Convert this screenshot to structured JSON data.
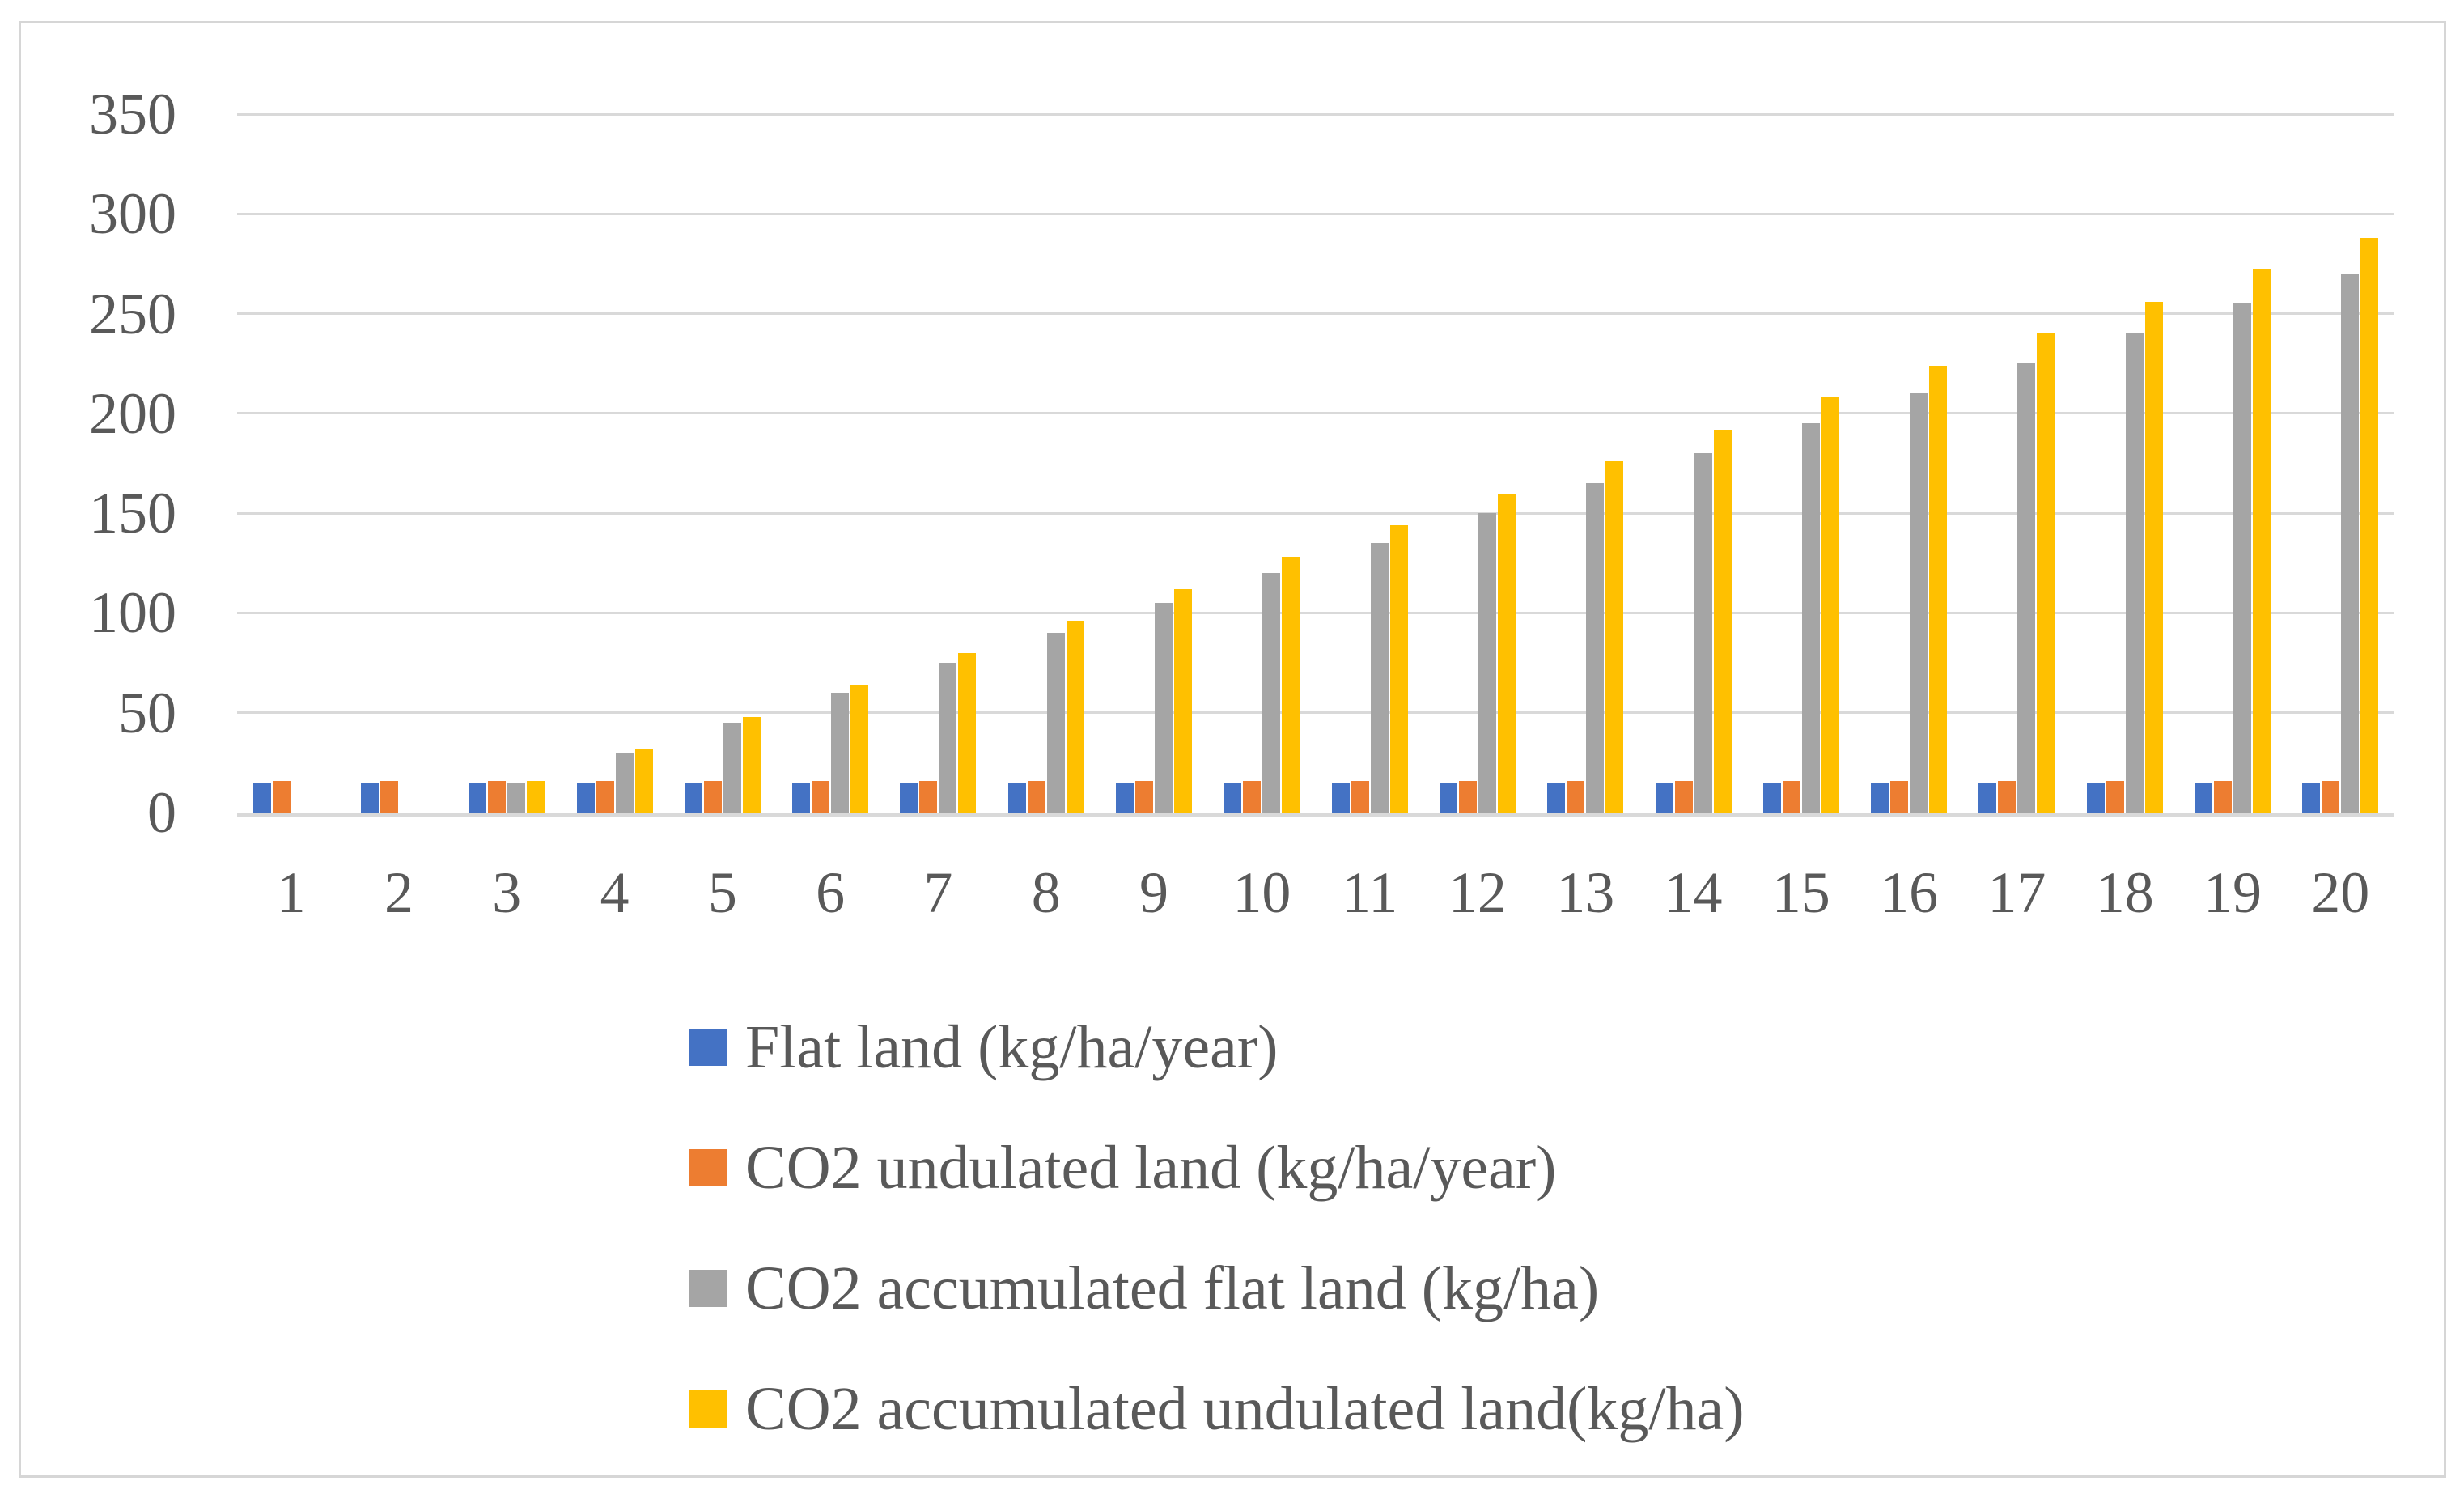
{
  "figure": {
    "background": "#FFFFFF",
    "border_color": "#D6D6D6",
    "gridline_color": "#D9D9D9",
    "axis_line_color": "#D9D9D9",
    "text_color": "#595959"
  },
  "chart_data": {
    "type": "bar",
    "title": "",
    "xlabel": "",
    "ylabel": "",
    "categories": [
      "1",
      "2",
      "3",
      "4",
      "5",
      "6",
      "7",
      "8",
      "9",
      "10",
      "11",
      "12",
      "13",
      "14",
      "15",
      "16",
      "17",
      "18",
      "19",
      "20"
    ],
    "ylim": [
      0,
      350
    ],
    "yticks": [
      0,
      50,
      100,
      150,
      200,
      250,
      300,
      350
    ],
    "grid": true,
    "legend_position": "bottom-left, stacked vertically",
    "series": [
      {
        "name": "Flat land (kg/ha/year)",
        "color": "#4472C4",
        "values": [
          15,
          15,
          15,
          15,
          15,
          15,
          15,
          15,
          15,
          15,
          15,
          15,
          15,
          15,
          15,
          15,
          15,
          15,
          15,
          15
        ]
      },
      {
        "name": "CO2 undulated land (kg/ha/year)",
        "color": "#ED7D31",
        "values": [
          16,
          16,
          16,
          16,
          16,
          16,
          16,
          16,
          16,
          16,
          16,
          16,
          16,
          16,
          16,
          16,
          16,
          16,
          16,
          16
        ]
      },
      {
        "name": "CO2 accumulated flat land (kg/ha)",
        "color": "#A5A5A5",
        "values": [
          0,
          0,
          15,
          30,
          45,
          60,
          75,
          90,
          105,
          120,
          135,
          150,
          165,
          180,
          195,
          210,
          225,
          240,
          255,
          270
        ]
      },
      {
        "name": "CO2 accumulated undulated land(kg/ha)",
        "color": "#FFC000",
        "values": [
          0,
          0,
          16,
          32,
          48,
          64,
          80,
          96,
          112,
          128,
          144,
          160,
          176,
          192,
          208,
          224,
          240,
          256,
          272,
          288
        ]
      }
    ]
  }
}
